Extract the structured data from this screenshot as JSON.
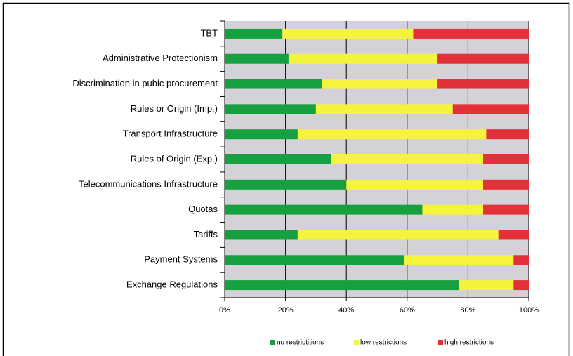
{
  "chart_data": {
    "type": "stacked-barh",
    "categories": [
      "TBT",
      "Administrative Protectionism",
      "Discrimination in pubic procurement",
      "Rules or Origin (Imp.)",
      "Transport Infrastructure",
      "Rules of Origin (Exp.)",
      "Telecommunications Infrastructure",
      "Quotas",
      "Tariffs",
      "Payment Systems",
      "Exchange Regulations"
    ],
    "series": [
      {
        "name": "no restrictitions",
        "color": "#17a040",
        "values": [
          19,
          21,
          32,
          30,
          24,
          35,
          40,
          65,
          24,
          59,
          77
        ]
      },
      {
        "name": "low restrictions",
        "color": "#f6f33c",
        "values": [
          43,
          49,
          38,
          45,
          62,
          50,
          45,
          20,
          66,
          36,
          18
        ]
      },
      {
        "name": "high restrictions",
        "color": "#e3313a",
        "values": [
          38,
          30,
          30,
          25,
          14,
          15,
          15,
          15,
          10,
          5,
          5
        ]
      }
    ],
    "xlim": [
      0,
      100
    ],
    "xticks": [
      {
        "value": 0,
        "label": "0%"
      },
      {
        "value": 20,
        "label": "20%"
      },
      {
        "value": 40,
        "label": "40%"
      },
      {
        "value": 60,
        "label": "60%"
      },
      {
        "value": 80,
        "label": "80%"
      },
      {
        "value": 100,
        "label": "100%"
      }
    ],
    "grid": true,
    "legend": "bottom"
  }
}
